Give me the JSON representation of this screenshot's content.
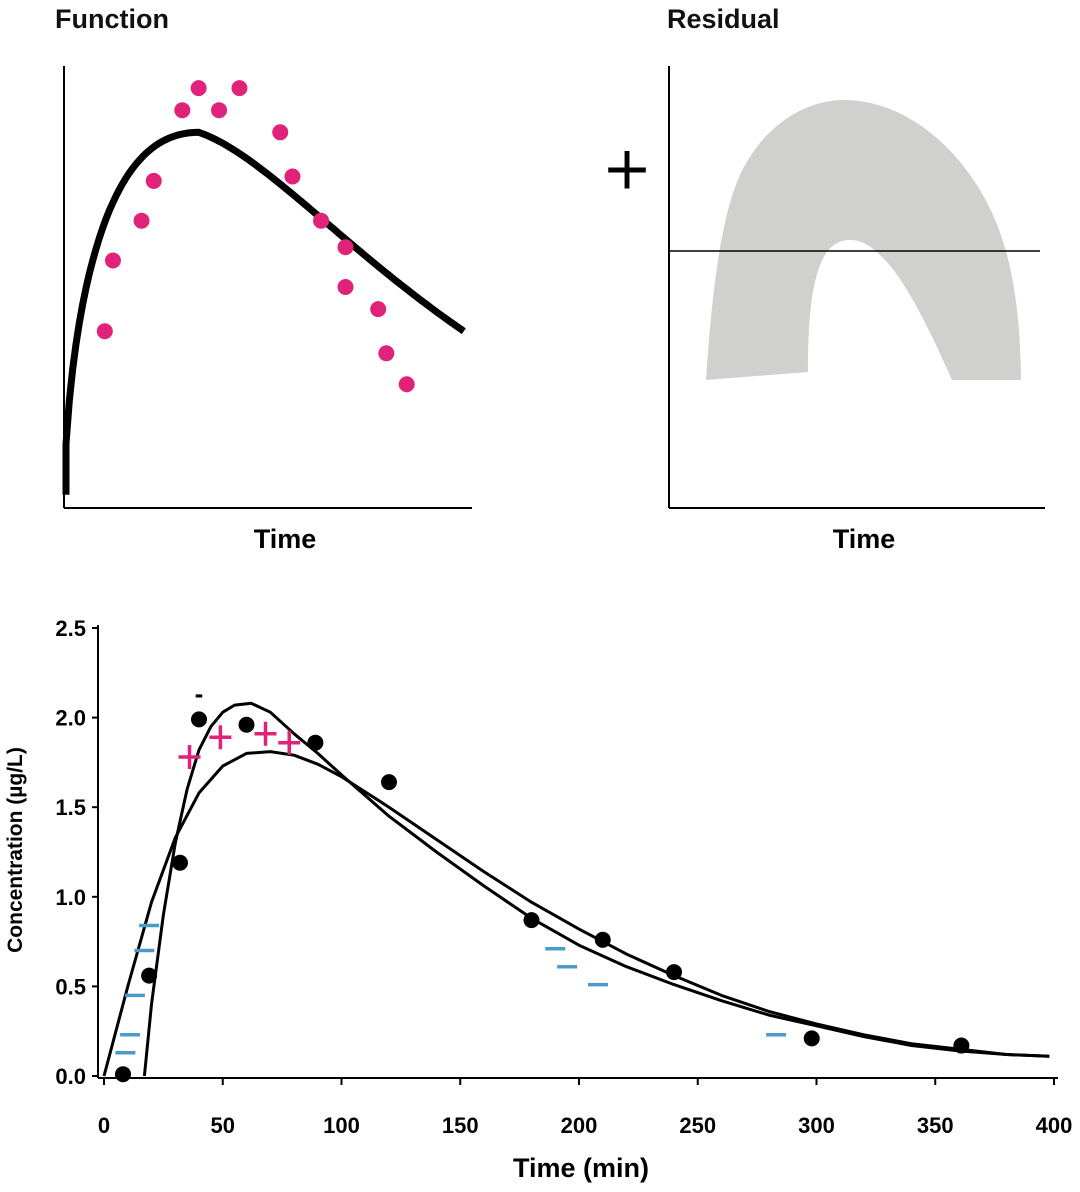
{
  "chart_data": [
    {
      "type": "scatter",
      "title": "Function",
      "xlabel": "Time",
      "ylabel": "",
      "grid": false,
      "colors": {
        "points": "#e02378",
        "curve": "#000000"
      },
      "points": [
        {
          "x": 0.1,
          "y": 0.4
        },
        {
          "x": 0.12,
          "y": 0.56
        },
        {
          "x": 0.19,
          "y": 0.65
        },
        {
          "x": 0.22,
          "y": 0.74
        },
        {
          "x": 0.29,
          "y": 0.9
        },
        {
          "x": 0.33,
          "y": 0.95
        },
        {
          "x": 0.38,
          "y": 0.9
        },
        {
          "x": 0.43,
          "y": 0.95
        },
        {
          "x": 0.53,
          "y": 0.85
        },
        {
          "x": 0.56,
          "y": 0.75
        },
        {
          "x": 0.63,
          "y": 0.65
        },
        {
          "x": 0.69,
          "y": 0.59
        },
        {
          "x": 0.69,
          "y": 0.5
        },
        {
          "x": 0.77,
          "y": 0.45
        },
        {
          "x": 0.79,
          "y": 0.35
        },
        {
          "x": 0.84,
          "y": 0.28
        }
      ],
      "fitted_curve": {
        "peak_x": 0.33,
        "peak_y": 0.85,
        "end_x": 0.98,
        "end_y": 0.4
      },
      "side_symbol": "+"
    },
    {
      "type": "area",
      "title": "Residual",
      "xlabel": "Time",
      "ylabel": "",
      "grid": false,
      "shape": "arch",
      "colors": {
        "band": "#d0d0cf",
        "zero_line": "#000000"
      }
    },
    {
      "type": "line",
      "title": "",
      "xlabel": "Time (min)",
      "ylabel": "Concentration (µg/L)",
      "xlim": [
        0,
        400
      ],
      "ylim": [
        0,
        2.5
      ],
      "xticks": [
        "0",
        "50",
        "100",
        "150",
        "200",
        "250",
        "300",
        "350",
        "400"
      ],
      "yticks": [
        "0.0",
        "0.5",
        "1.0",
        "1.5",
        "2.0",
        "2.5"
      ],
      "grid": false,
      "observed": [
        {
          "x": 8,
          "y": 0.01
        },
        {
          "x": 19,
          "y": 0.56
        },
        {
          "x": 32,
          "y": 1.19
        },
        {
          "x": 40,
          "y": 1.99
        },
        {
          "x": 60,
          "y": 1.96
        },
        {
          "x": 89,
          "y": 1.86
        },
        {
          "x": 120,
          "y": 1.64
        },
        {
          "x": 180,
          "y": 0.87
        },
        {
          "x": 210,
          "y": 0.76
        },
        {
          "x": 240,
          "y": 0.58
        },
        {
          "x": 298,
          "y": 0.21
        },
        {
          "x": 361,
          "y": 0.17
        }
      ],
      "series": [
        {
          "points": [
            [
              0,
              0
            ],
            [
              10,
              0.5
            ],
            [
              20,
              0.97
            ],
            [
              30,
              1.33
            ],
            [
              40,
              1.58
            ],
            [
              50,
              1.73
            ],
            [
              60,
              1.8
            ],
            [
              70,
              1.81
            ],
            [
              80,
              1.79
            ],
            [
              90,
              1.74
            ],
            [
              100,
              1.67
            ],
            [
              120,
              1.5
            ],
            [
              140,
              1.32
            ],
            [
              160,
              1.14
            ],
            [
              180,
              0.97
            ],
            [
              200,
              0.82
            ],
            [
              220,
              0.68
            ],
            [
              240,
              0.56
            ],
            [
              260,
              0.45
            ],
            [
              280,
              0.36
            ],
            [
              300,
              0.29
            ],
            [
              320,
              0.23
            ],
            [
              340,
              0.18
            ],
            [
              360,
              0.15
            ],
            [
              380,
              0.12
            ],
            [
              398,
              0.11
            ]
          ]
        },
        {
          "points": [
            [
              17,
              0
            ],
            [
              20,
              0.4
            ],
            [
              25,
              0.9
            ],
            [
              30,
              1.3
            ],
            [
              35,
              1.6
            ],
            [
              40,
              1.82
            ],
            [
              45,
              1.95
            ],
            [
              50,
              2.03
            ],
            [
              55,
              2.07
            ],
            [
              62,
              2.08
            ],
            [
              70,
              2.03
            ],
            [
              80,
              1.91
            ],
            [
              90,
              1.8
            ],
            [
              100,
              1.68
            ],
            [
              120,
              1.45
            ],
            [
              140,
              1.25
            ],
            [
              160,
              1.06
            ],
            [
              180,
              0.88
            ],
            [
              200,
              0.73
            ],
            [
              220,
              0.61
            ],
            [
              240,
              0.51
            ],
            [
              260,
              0.42
            ],
            [
              280,
              0.34
            ],
            [
              300,
              0.28
            ],
            [
              320,
              0.22
            ],
            [
              340,
              0.17
            ],
            [
              360,
              0.14
            ],
            [
              380,
              0.12
            ],
            [
              398,
              0.11
            ]
          ]
        }
      ],
      "residual_plus": [
        {
          "x": 36,
          "y": 1.78
        },
        {
          "x": 49,
          "y": 1.89
        },
        {
          "x": 68,
          "y": 1.91
        },
        {
          "x": 78,
          "y": 1.86
        }
      ],
      "residual_minus": [
        {
          "x": 9,
          "y": 0.13
        },
        {
          "x": 11,
          "y": 0.23
        },
        {
          "x": 13,
          "y": 0.45
        },
        {
          "x": 17,
          "y": 0.7
        },
        {
          "x": 19,
          "y": 0.84
        },
        {
          "x": 190,
          "y": 0.71
        },
        {
          "x": 195,
          "y": 0.61
        },
        {
          "x": 208,
          "y": 0.51
        },
        {
          "x": 283,
          "y": 0.23
        }
      ],
      "annotation_dash": {
        "text": "-",
        "x": 40,
        "y": 2.13
      },
      "colors": {
        "observed": "#000000",
        "plus": "#e02378",
        "minus": "#4a9bc8",
        "curves": "#000000"
      }
    }
  ]
}
